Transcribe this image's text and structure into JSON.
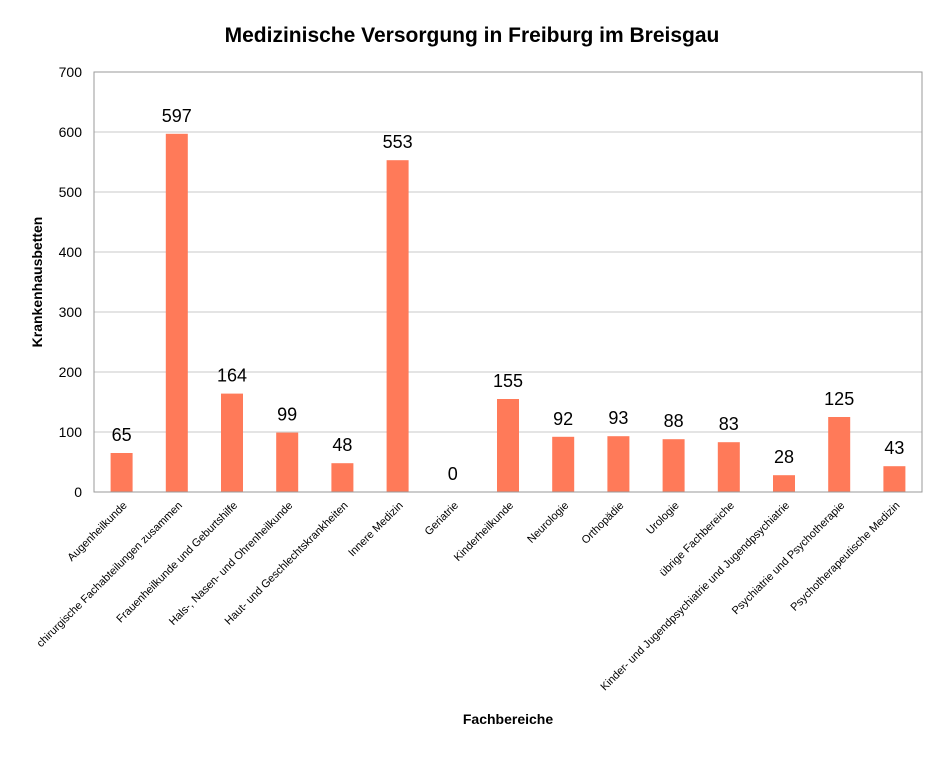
{
  "chart_data": {
    "type": "bar",
    "title": "Medizinische Versorgung in Freiburg im Breisgau",
    "xlabel": "Fachbereiche",
    "ylabel": "Krankenhausbetten",
    "ylim": [
      0,
      700
    ],
    "yticks": [
      0,
      100,
      200,
      300,
      400,
      500,
      600,
      700
    ],
    "grid": true,
    "legend": "none",
    "bar_color": "#ff7a59",
    "categories": [
      "Augenheilkunde",
      "chirurgische Fachabteilungen zusammen",
      "Frauenheilkunde und Geburtshilfe",
      "Hals-, Nasen- und Ohrenheilkunde",
      "Haut- und Geschlechtskrankheiten",
      "Innere Medizin",
      "Geriatrie",
      "Kinderheilkunde",
      "Neurologie",
      "Orthopädie",
      "Urologie",
      "übrige Fachbereiche",
      "Kinder- und Jugendpsychiatrie und Jugendpsychiatrie",
      "Psychiatrie und Psychotherapie",
      "Psychotherapeutische Medizin"
    ],
    "values": [
      65,
      597,
      164,
      99,
      48,
      553,
      0,
      155,
      92,
      93,
      88,
      83,
      28,
      125,
      43
    ]
  }
}
